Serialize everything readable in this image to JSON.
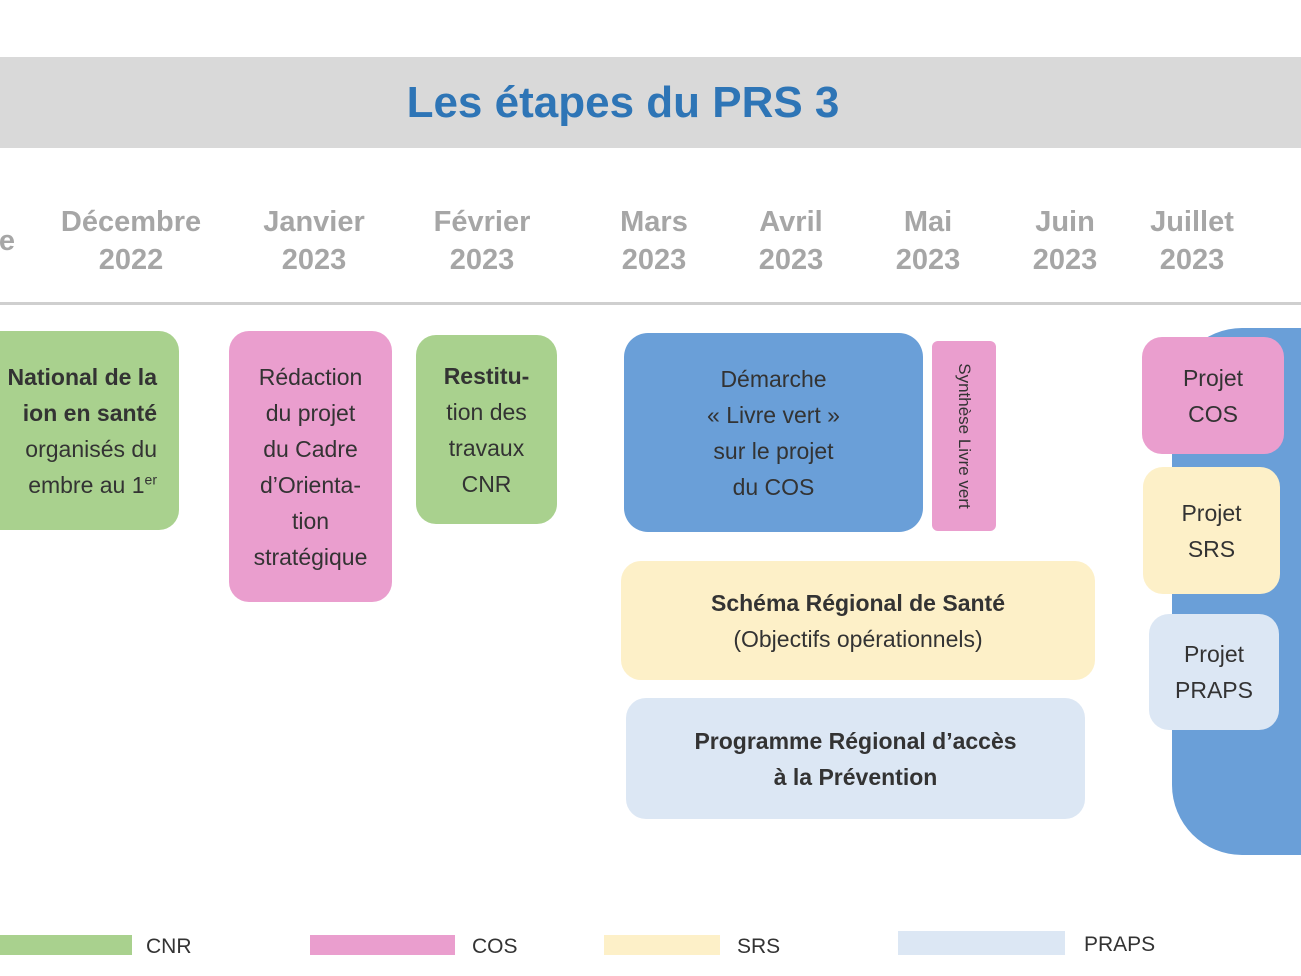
{
  "title": "Les étapes du PRS 3",
  "months": [
    {
      "name": "e",
      "year": ""
    },
    {
      "name": "Décembre",
      "year": "2022"
    },
    {
      "name": "Janvier",
      "year": "2023"
    },
    {
      "name": "Février",
      "year": "2023"
    },
    {
      "name": "Mars",
      "year": "2023"
    },
    {
      "name": "Avril",
      "year": "2023"
    },
    {
      "name": "Mai",
      "year": "2023"
    },
    {
      "name": "Juin",
      "year": "2023"
    },
    {
      "name": "Juillet",
      "year": "2023"
    }
  ],
  "boxes": {
    "cnr_national": {
      "lines": [
        "National de la",
        "ion en santé",
        "organisés du",
        "embre au 1",
        "er"
      ]
    },
    "redaction": {
      "lines": [
        "Rédaction",
        "du projet",
        "du Cadre",
        "d’Orienta-",
        "tion",
        "stratégique"
      ]
    },
    "restitution": {
      "lines": [
        "Restitu-",
        "tion des",
        "travaux",
        "CNR"
      ]
    },
    "livre_vert": {
      "lines": [
        "Démarche",
        "« Livre vert »",
        "sur le projet",
        "du COS"
      ]
    },
    "synthese": {
      "text": "Synthèse Livre vert"
    },
    "srs_schema": {
      "lines": [
        "Schéma Régional de Santé",
        "(Objectifs opérationnels)"
      ]
    },
    "praps_programme": {
      "lines": [
        "Programme Régional d’accès",
        "à la Prévention"
      ]
    },
    "projet_cos": {
      "lines": [
        "Projet",
        "COS"
      ]
    },
    "projet_srs": {
      "lines": [
        "Projet",
        "SRS"
      ]
    },
    "projet_praps": {
      "lines": [
        "Projet",
        "PRAPS"
      ]
    }
  },
  "legend": [
    {
      "label": "CNR",
      "color": "#a9d18e"
    },
    {
      "label": "COS",
      "color": "#ea9ece"
    },
    {
      "label": "SRS",
      "color": "#fdf0c8"
    },
    {
      "label": "PRAPS",
      "color": "#dce7f4"
    }
  ],
  "colors": {
    "title": "#2e75b6",
    "cnr": "#a9d18e",
    "cos": "#ea9ece",
    "srs": "#fdf0c8",
    "praps": "#dce7f4",
    "livre_vert": "#6a9fd8",
    "month_text": "#a6a6a6"
  }
}
